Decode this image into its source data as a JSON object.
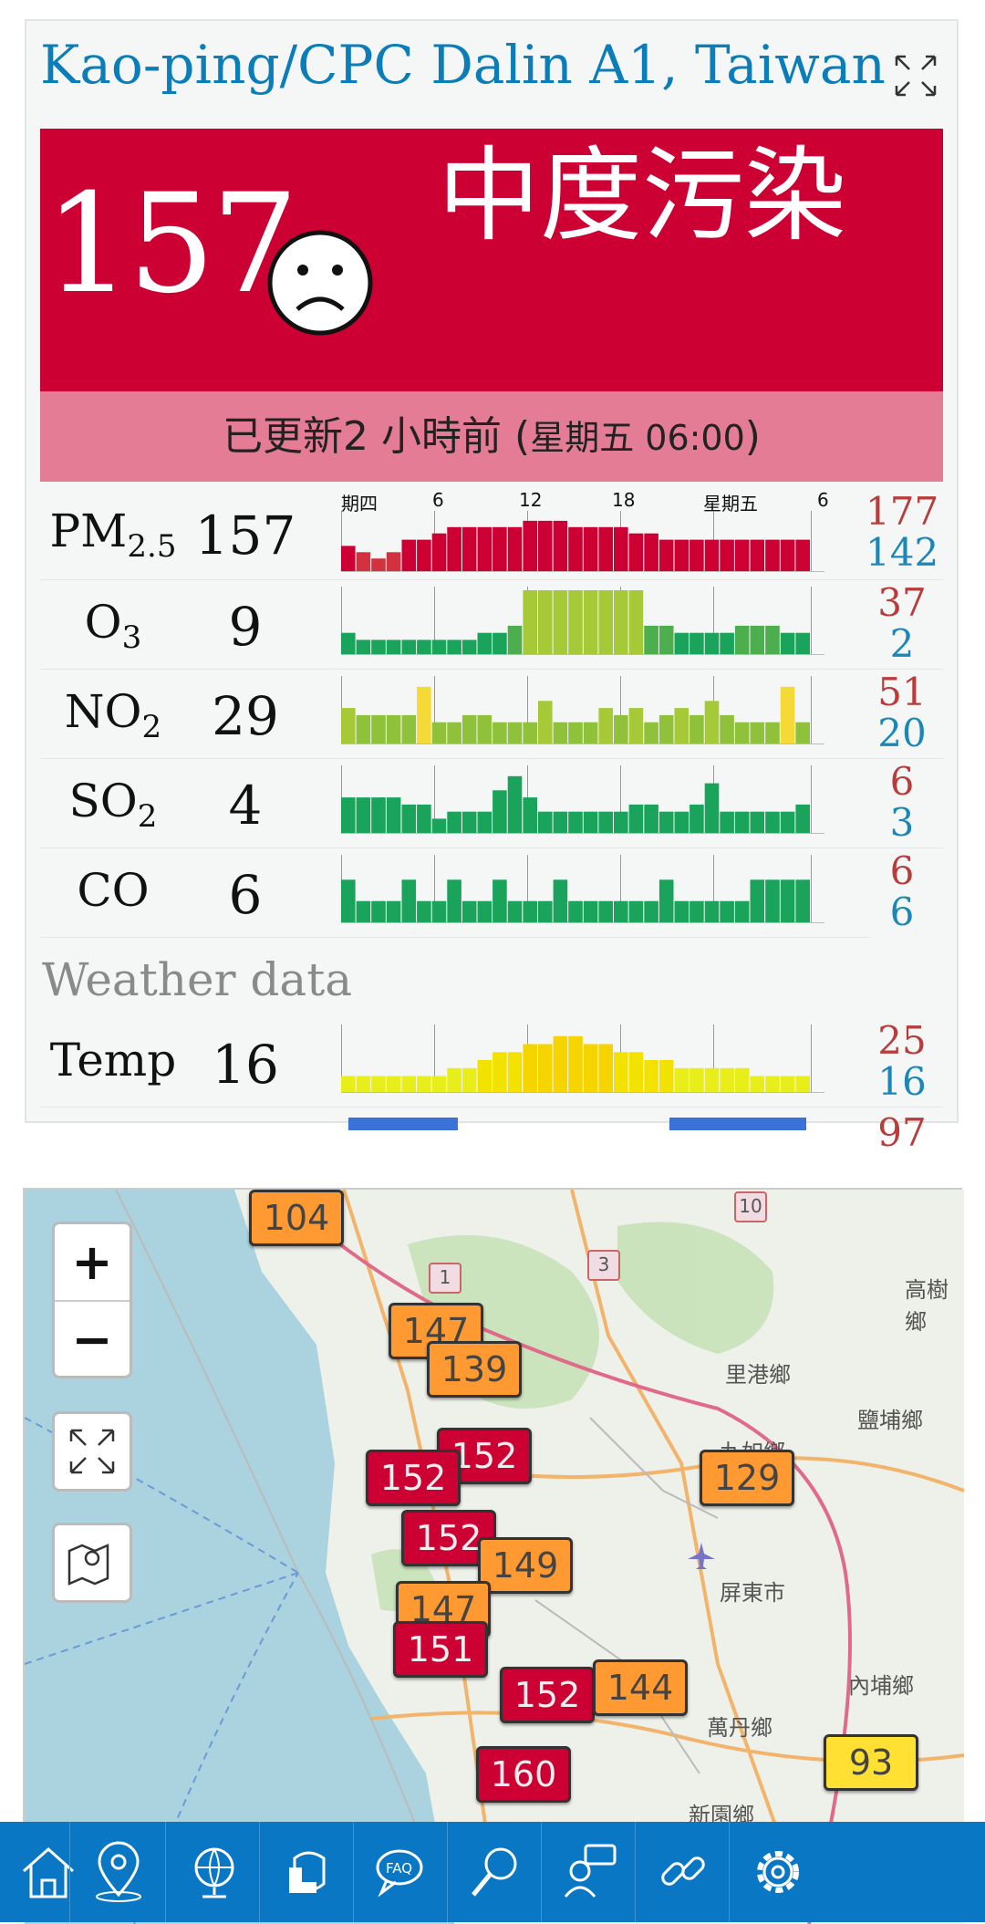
{
  "station": {
    "title": "Kao-ping/CPC Dalin A1, Taiwan"
  },
  "aqi": {
    "value": "157",
    "level": "中度污染",
    "color": "#cc0033"
  },
  "updated": {
    "main": "已更新2 小時前 (",
    "sub": "星期五 06:00",
    "close": ")"
  },
  "timeline": {
    "labels": [
      "期四",
      "6",
      "12",
      "18",
      "星期五",
      "6"
    ]
  },
  "pollutants": [
    {
      "name": "PM",
      "sub": "2.5",
      "value": "157",
      "max": "177",
      "min": "142",
      "levels": [
        4,
        3,
        2,
        3,
        5,
        5,
        6,
        7,
        7,
        7,
        7,
        7,
        8,
        8,
        8,
        7,
        7,
        7,
        7,
        6,
        6,
        5,
        5,
        5,
        5,
        5,
        5,
        5,
        5,
        5,
        5
      ]
    },
    {
      "name": "O",
      "sub": "3",
      "value": "9",
      "max": "37",
      "min": "2",
      "levels": [
        3,
        2,
        2,
        2,
        2,
        2,
        2,
        2,
        2,
        3,
        3,
        4,
        9,
        9,
        9,
        9,
        9,
        9,
        9,
        9,
        4,
        4,
        3,
        3,
        3,
        3,
        4,
        4,
        4,
        3,
        3
      ]
    },
    {
      "name": "NO",
      "sub": "2",
      "value": "29",
      "max": "51",
      "min": "20",
      "levels": [
        5,
        4,
        4,
        4,
        4,
        8,
        3,
        3,
        4,
        4,
        3,
        3,
        3,
        6,
        3,
        3,
        3,
        5,
        4,
        5,
        3,
        4,
        5,
        4,
        6,
        4,
        3,
        3,
        3,
        8,
        3
      ]
    },
    {
      "name": "SO",
      "sub": "2",
      "value": "4",
      "max": "6",
      "min": "3",
      "levels": [
        5,
        5,
        5,
        5,
        4,
        4,
        2,
        3,
        3,
        3,
        6,
        8,
        5,
        3,
        3,
        3,
        3,
        3,
        3,
        4,
        4,
        3,
        3,
        4,
        7,
        3,
        3,
        3,
        3,
        3,
        4
      ]
    },
    {
      "name": "CO",
      "sub": "",
      "value": "6",
      "max": "6",
      "min": "6",
      "levels": [
        6,
        3,
        3,
        3,
        6,
        3,
        3,
        6,
        3,
        3,
        6,
        3,
        3,
        3,
        6,
        3,
        3,
        3,
        3,
        3,
        3,
        6,
        3,
        3,
        3,
        3,
        3,
        6,
        6,
        6,
        6
      ]
    }
  ],
  "weather": {
    "title": "Weather data",
    "temp": {
      "name": "Temp",
      "value": "16",
      "max": "25",
      "min": "16",
      "levels": [
        2,
        2,
        2,
        2,
        2,
        2,
        2,
        3,
        3,
        4,
        5,
        5,
        6,
        6,
        7,
        7,
        6,
        6,
        5,
        5,
        4,
        4,
        3,
        3,
        3,
        3,
        3,
        2,
        2,
        2,
        2
      ]
    },
    "next_max": "97"
  },
  "map": {
    "zoom_in": "+",
    "zoom_out": "−",
    "place_labels": [
      "里港鄉",
      "鹽埔鄉",
      "九如鄉",
      "屏東市",
      "內埔鄉",
      "萬丹鄉",
      "新園鄉",
      "高樹鄉"
    ],
    "road_shields": [
      "10",
      "1",
      "3"
    ],
    "markers": [
      {
        "value": "104",
        "color": "orange"
      },
      {
        "value": "147",
        "color": "orange"
      },
      {
        "value": "139",
        "color": "orange"
      },
      {
        "value": "152",
        "color": "red"
      },
      {
        "value": "152",
        "color": "red"
      },
      {
        "value": "129",
        "color": "orange"
      },
      {
        "value": "152",
        "color": "red"
      },
      {
        "value": "149",
        "color": "orange"
      },
      {
        "value": "147",
        "color": "orange"
      },
      {
        "value": "151",
        "color": "red"
      },
      {
        "value": "152",
        "color": "red"
      },
      {
        "value": "144",
        "color": "orange"
      },
      {
        "value": "160",
        "color": "red"
      },
      {
        "value": "93",
        "color": "yellow"
      }
    ]
  },
  "nav": [
    "home-icon",
    "map-pin-icon",
    "globe-icon",
    "mask-icon",
    "faq-icon",
    "search-icon",
    "chat-icon",
    "link-icon",
    "gear-icon"
  ]
}
